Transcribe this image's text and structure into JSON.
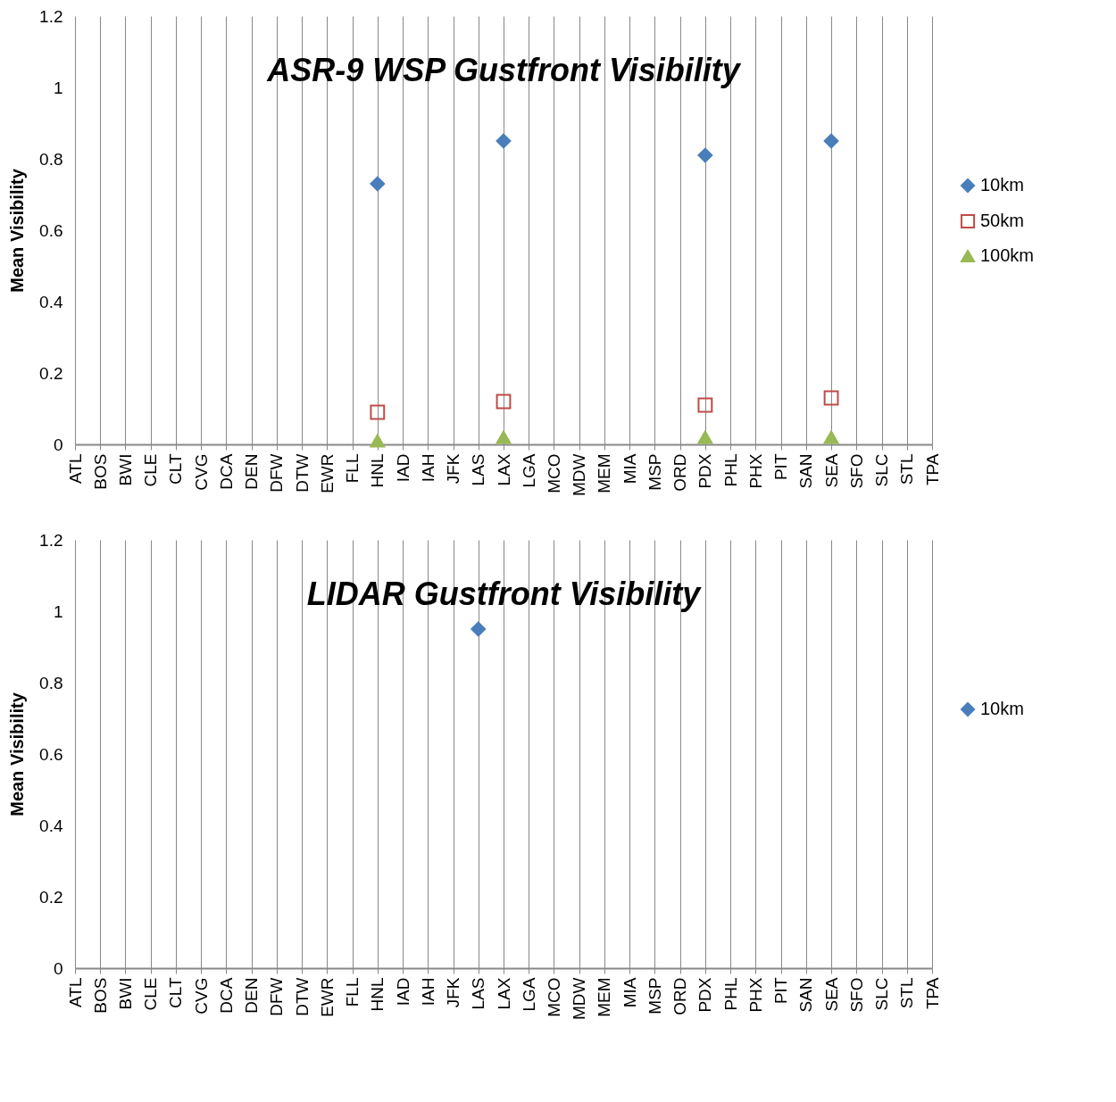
{
  "chart_data": [
    {
      "type": "scatter",
      "title": "ASR-9 WSP Gustfront Visibility",
      "ylabel": "Mean Visibility",
      "categories": [
        "ATL",
        "BOS",
        "BWI",
        "CLE",
        "CLT",
        "CVG",
        "DCA",
        "DEN",
        "DFW",
        "DTW",
        "EWR",
        "FLL",
        "HNL",
        "IAD",
        "IAH",
        "JFK",
        "LAS",
        "LAX",
        "LGA",
        "MCO",
        "MDW",
        "MEM",
        "MIA",
        "MSP",
        "ORD",
        "PDX",
        "PHL",
        "PHX",
        "PIT",
        "SAN",
        "SEA",
        "SFO",
        "SLC",
        "STL",
        "TPA"
      ],
      "series": [
        {
          "name": "10km",
          "color": "#4a7ebb",
          "marker": "diamond",
          "values": [
            null,
            null,
            null,
            null,
            null,
            null,
            null,
            null,
            null,
            null,
            null,
            null,
            0.73,
            null,
            null,
            null,
            null,
            0.85,
            null,
            null,
            null,
            null,
            null,
            null,
            null,
            0.81,
            null,
            null,
            null,
            null,
            0.85,
            null,
            null,
            null,
            null
          ]
        },
        {
          "name": "50km",
          "color": "#be4b48",
          "marker": "square",
          "values": [
            null,
            null,
            null,
            null,
            null,
            null,
            null,
            null,
            null,
            null,
            null,
            null,
            0.09,
            null,
            null,
            null,
            null,
            0.12,
            null,
            null,
            null,
            null,
            null,
            null,
            null,
            0.11,
            null,
            null,
            null,
            null,
            0.13,
            null,
            null,
            null,
            null
          ]
        },
        {
          "name": "100km",
          "color": "#98b954",
          "marker": "triangle",
          "values": [
            null,
            null,
            null,
            null,
            null,
            null,
            null,
            null,
            null,
            null,
            null,
            null,
            0.01,
            null,
            null,
            null,
            null,
            0.02,
            null,
            null,
            null,
            null,
            null,
            null,
            null,
            0.02,
            null,
            null,
            null,
            null,
            0.02,
            null,
            null,
            null,
            null
          ]
        }
      ],
      "ylim": [
        0,
        1.2
      ],
      "yticks": [
        0,
        0.2,
        0.4,
        0.6,
        0.8,
        1,
        1.2
      ],
      "grid": "x",
      "legend": "right"
    },
    {
      "type": "scatter",
      "title": "LIDAR Gustfront Visibility",
      "ylabel": "Mean Visibility",
      "categories": [
        "ATL",
        "BOS",
        "BWI",
        "CLE",
        "CLT",
        "CVG",
        "DCA",
        "DEN",
        "DFW",
        "DTW",
        "EWR",
        "FLL",
        "HNL",
        "IAD",
        "IAH",
        "JFK",
        "LAS",
        "LAX",
        "LGA",
        "MCO",
        "MDW",
        "MEM",
        "MIA",
        "MSP",
        "ORD",
        "PDX",
        "PHL",
        "PHX",
        "PIT",
        "SAN",
        "SEA",
        "SFO",
        "SLC",
        "STL",
        "TPA"
      ],
      "series": [
        {
          "name": "10km",
          "color": "#4a7ebb",
          "marker": "diamond",
          "values": [
            null,
            null,
            null,
            null,
            null,
            null,
            null,
            null,
            null,
            null,
            null,
            null,
            null,
            null,
            null,
            null,
            0.95,
            null,
            null,
            null,
            null,
            null,
            null,
            null,
            null,
            null,
            null,
            null,
            null,
            null,
            null,
            null,
            null,
            null,
            null
          ]
        }
      ],
      "ylim": [
        0,
        1.2
      ],
      "yticks": [
        0,
        0.2,
        0.4,
        0.6,
        0.8,
        1,
        1.2
      ],
      "grid": "x",
      "legend": "right"
    }
  ]
}
